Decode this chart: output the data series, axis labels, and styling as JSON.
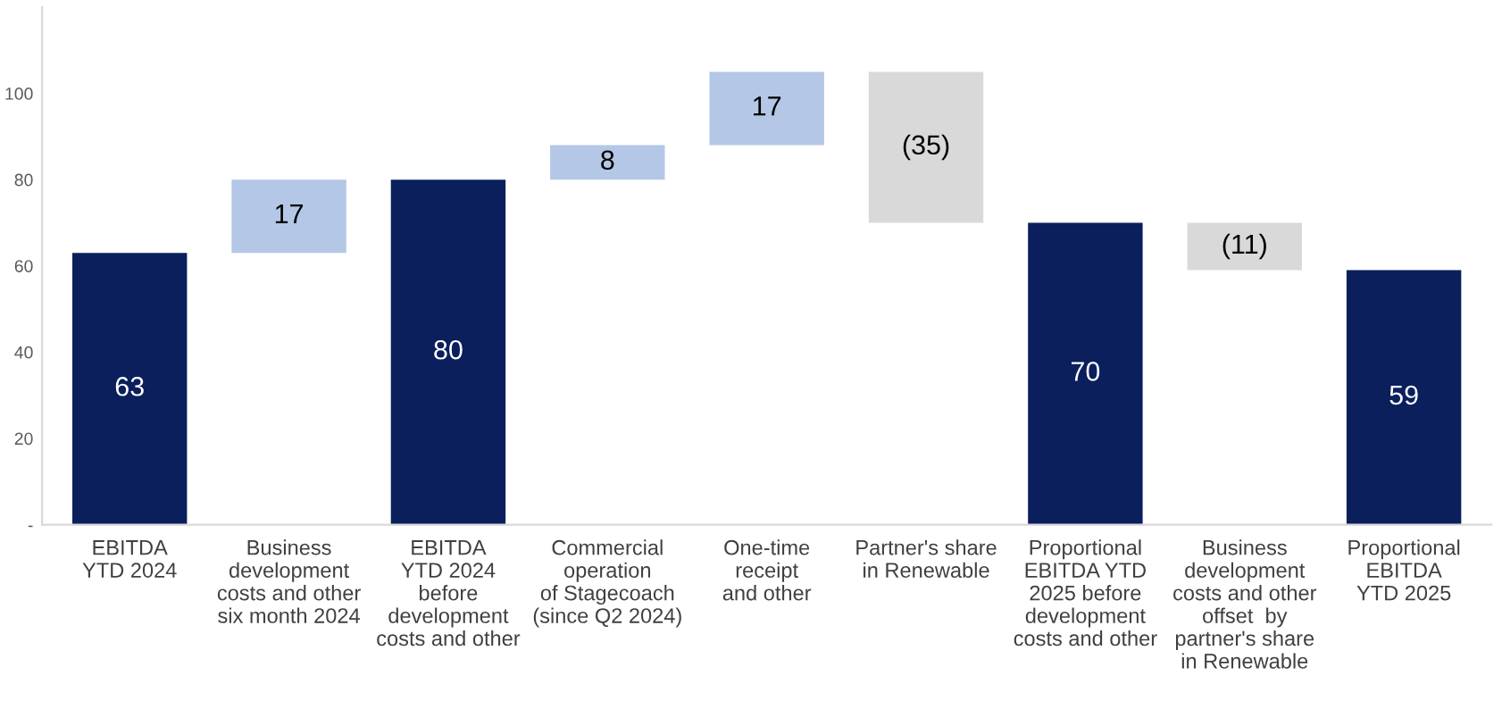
{
  "chart_data": {
    "type": "bar",
    "categories": [
      "EBITDA\nYTD 2024",
      "Business\ndevelopment\ncosts and other\nsix month 2024",
      "EBITDA\nYTD 2024\nbefore\ndevelopment\ncosts and other",
      "Commercial\noperation\nof Stagecoach\n(since Q2 2024)",
      "One-time\nreceipt\nand other",
      "Partner's share\nin Renewable",
      "Proportional\nEBITDA YTD\n2025 before\ndevelopment\ncosts and other",
      "Business\ndevelopment\ncosts and other\noffset  by\npartner's share\nin Renewable",
      "Proportional\nEBITDA\nYTD 2025"
    ],
    "values": [
      63,
      17,
      80,
      8,
      17,
      -35,
      70,
      -11,
      59
    ],
    "base": [
      0,
      63,
      0,
      80,
      88,
      105,
      0,
      70,
      0
    ],
    "colors": [
      "#0a1f5c",
      "#b4c7e7",
      "#0a1f5c",
      "#b4c7e7",
      "#b4c7e7",
      "#d9d9d9",
      "#0a1f5c",
      "#d9d9d9",
      "#0a1f5c"
    ],
    "value_labels": [
      "63",
      "17",
      "80",
      "8",
      "17",
      "(35)",
      "70",
      "(11)",
      "59"
    ],
    "ylim": [
      0,
      120
    ],
    "yticks": [
      {
        "value": 0,
        "label": "-"
      },
      20,
      40,
      60,
      80,
      100
    ],
    "grid": false,
    "legend": false
  }
}
